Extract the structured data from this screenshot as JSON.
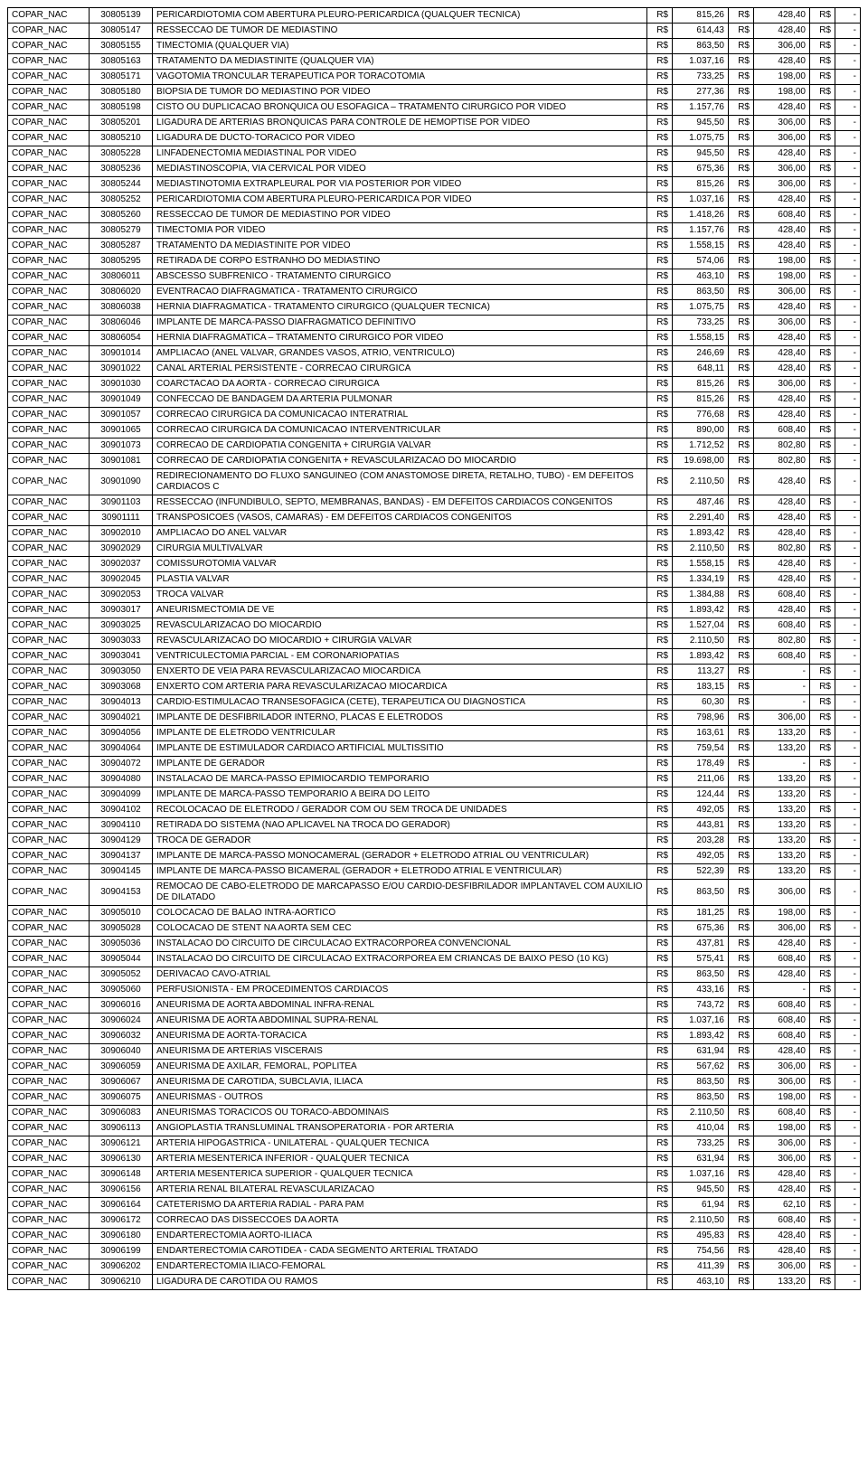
{
  "currency": "R$",
  "dash": "-",
  "rows": [
    {
      "cat": "COPAR_NAC",
      "code": "30805139",
      "desc": "PERICARDIOTOMIA COM ABERTURA PLEURO-PERICARDICA (QUALQUER TECNICA)",
      "v1": "815,26",
      "v2": "428,40",
      "v3": "-"
    },
    {
      "cat": "COPAR_NAC",
      "code": "30805147",
      "desc": "RESSECCAO DE TUMOR DE MEDIASTINO",
      "v1": "614,43",
      "v2": "428,40",
      "v3": "-"
    },
    {
      "cat": "COPAR_NAC",
      "code": "30805155",
      "desc": "TIMECTOMIA (QUALQUER VIA)",
      "v1": "863,50",
      "v2": "306,00",
      "v3": "-"
    },
    {
      "cat": "COPAR_NAC",
      "code": "30805163",
      "desc": "TRATAMENTO DA MEDIASTINITE (QUALQUER VIA)",
      "v1": "1.037,16",
      "v2": "428,40",
      "v3": "-"
    },
    {
      "cat": "COPAR_NAC",
      "code": "30805171",
      "desc": "VAGOTOMIA TRONCULAR TERAPEUTICA POR TORACOTOMIA",
      "v1": "733,25",
      "v2": "198,00",
      "v3": "-"
    },
    {
      "cat": "COPAR_NAC",
      "code": "30805180",
      "desc": "BIOPSIA DE TUMOR DO MEDIASTINO POR VIDEO",
      "v1": "277,36",
      "v2": "198,00",
      "v3": "-"
    },
    {
      "cat": "COPAR_NAC",
      "code": "30805198",
      "desc": "CISTO OU DUPLICACAO BRONQUICA OU ESOFAGICA – TRATAMENTO CIRURGICO POR VIDEO",
      "v1": "1.157,76",
      "v2": "428,40",
      "v3": "-"
    },
    {
      "cat": "COPAR_NAC",
      "code": "30805201",
      "desc": "LIGADURA DE ARTERIAS BRONQUICAS PARA CONTROLE DE HEMOPTISE POR VIDEO",
      "v1": "945,50",
      "v2": "306,00",
      "v3": "-"
    },
    {
      "cat": "COPAR_NAC",
      "code": "30805210",
      "desc": "LIGADURA DE DUCTO-TORACICO POR VIDEO",
      "v1": "1.075,75",
      "v2": "306,00",
      "v3": "-"
    },
    {
      "cat": "COPAR_NAC",
      "code": "30805228",
      "desc": "LINFADENECTOMIA MEDIASTINAL POR VIDEO",
      "v1": "945,50",
      "v2": "428,40",
      "v3": "-"
    },
    {
      "cat": "COPAR_NAC",
      "code": "30805236",
      "desc": "MEDIASTINOSCOPIA, VIA CERVICAL POR VIDEO",
      "v1": "675,36",
      "v2": "306,00",
      "v3": "-"
    },
    {
      "cat": "COPAR_NAC",
      "code": "30805244",
      "desc": "MEDIASTINOTOMIA EXTRAPLEURAL POR VIA POSTERIOR POR VIDEO",
      "v1": "815,26",
      "v2": "306,00",
      "v3": "-"
    },
    {
      "cat": "COPAR_NAC",
      "code": "30805252",
      "desc": "PERICARDIOTOMIA COM ABERTURA PLEURO-PERICARDICA POR VIDEO",
      "v1": "1.037,16",
      "v2": "428,40",
      "v3": "-"
    },
    {
      "cat": "COPAR_NAC",
      "code": "30805260",
      "desc": "RESSECCAO DE TUMOR DE MEDIASTINO POR VIDEO",
      "v1": "1.418,26",
      "v2": "608,40",
      "v3": "-"
    },
    {
      "cat": "COPAR_NAC",
      "code": "30805279",
      "desc": "TIMECTOMIA POR VIDEO",
      "v1": "1.157,76",
      "v2": "428,40",
      "v3": "-"
    },
    {
      "cat": "COPAR_NAC",
      "code": "30805287",
      "desc": "TRATAMENTO DA MEDIASTINITE POR VIDEO",
      "v1": "1.558,15",
      "v2": "428,40",
      "v3": "-"
    },
    {
      "cat": "COPAR_NAC",
      "code": "30805295",
      "desc": "RETIRADA DE CORPO ESTRANHO DO MEDIASTINO",
      "v1": "574,06",
      "v2": "198,00",
      "v3": "-"
    },
    {
      "cat": "COPAR_NAC",
      "code": "30806011",
      "desc": "ABSCESSO SUBFRENICO - TRATAMENTO CIRURGICO",
      "v1": "463,10",
      "v2": "198,00",
      "v3": "-"
    },
    {
      "cat": "COPAR_NAC",
      "code": "30806020",
      "desc": "EVENTRACAO DIAFRAGMATICA - TRATAMENTO CIRURGICO",
      "v1": "863,50",
      "v2": "306,00",
      "v3": "-"
    },
    {
      "cat": "COPAR_NAC",
      "code": "30806038",
      "desc": "HERNIA DIAFRAGMATICA - TRATAMENTO CIRURGICO (QUALQUER TECNICA)",
      "v1": "1.075,75",
      "v2": "428,40",
      "v3": "-"
    },
    {
      "cat": "COPAR_NAC",
      "code": "30806046",
      "desc": "IMPLANTE DE MARCA-PASSO DIAFRAGMATICO DEFINITIVO",
      "v1": "733,25",
      "v2": "306,00",
      "v3": "-"
    },
    {
      "cat": "COPAR_NAC",
      "code": "30806054",
      "desc": "HERNIA DIAFRAGMATICA – TRATAMENTO CIRURGICO POR VIDEO",
      "v1": "1.558,15",
      "v2": "428,40",
      "v3": "-"
    },
    {
      "cat": "COPAR_NAC",
      "code": "30901014",
      "desc": "AMPLIACAO (ANEL VALVAR, GRANDES VASOS, ATRIO, VENTRICULO)",
      "v1": "246,69",
      "v2": "428,40",
      "v3": "-"
    },
    {
      "cat": "COPAR_NAC",
      "code": "30901022",
      "desc": "CANAL ARTERIAL PERSISTENTE - CORRECAO CIRURGICA",
      "v1": "648,11",
      "v2": "428,40",
      "v3": "-"
    },
    {
      "cat": "COPAR_NAC",
      "code": "30901030",
      "desc": "COARCTACAO DA AORTA - CORRECAO CIRURGICA",
      "v1": "815,26",
      "v2": "306,00",
      "v3": "-"
    },
    {
      "cat": "COPAR_NAC",
      "code": "30901049",
      "desc": "CONFECCAO DE BANDAGEM DA ARTERIA PULMONAR",
      "v1": "815,26",
      "v2": "428,40",
      "v3": "-"
    },
    {
      "cat": "COPAR_NAC",
      "code": "30901057",
      "desc": "CORRECAO CIRURGICA DA COMUNICACAO INTERATRIAL",
      "v1": "776,68",
      "v2": "428,40",
      "v3": "-"
    },
    {
      "cat": "COPAR_NAC",
      "code": "30901065",
      "desc": "CORRECAO CIRURGICA DA COMUNICACAO INTERVENTRICULAR",
      "v1": "890,00",
      "v2": "608,40",
      "v3": "-"
    },
    {
      "cat": "COPAR_NAC",
      "code": "30901073",
      "desc": "CORRECAO DE CARDIOPATIA CONGENITA + CIRURGIA VALVAR",
      "v1": "1.712,52",
      "v2": "802,80",
      "v3": "-"
    },
    {
      "cat": "COPAR_NAC",
      "code": "30901081",
      "desc": "CORRECAO DE CARDIOPATIA CONGENITA + REVASCULARIZACAO DO MIOCARDIO",
      "v1": "19.698,00",
      "v2": "802,80",
      "v3": "-"
    },
    {
      "cat": "COPAR_NAC",
      "code": "30901090",
      "desc": "REDIRECIONAMENTO DO FLUXO SANGUINEO (COM ANASTOMOSE DIRETA, RETALHO, TUBO) - EM DEFEITOS CARDIACOS C",
      "v1": "2.110,50",
      "v2": "428,40",
      "v3": "-"
    },
    {
      "cat": "COPAR_NAC",
      "code": "30901103",
      "desc": "RESSECCAO (INFUNDIBULO, SEPTO, MEMBRANAS, BANDAS) - EM DEFEITOS CARDIACOS CONGENITOS",
      "v1": "487,46",
      "v2": "428,40",
      "v3": "-"
    },
    {
      "cat": "COPAR_NAC",
      "code": "30901111",
      "desc": "TRANSPOSICOES (VASOS, CAMARAS) - EM DEFEITOS CARDIACOS CONGENITOS",
      "v1": "2.291,40",
      "v2": "428,40",
      "v3": "-"
    },
    {
      "cat": "COPAR_NAC",
      "code": "30902010",
      "desc": "AMPLIACAO DO ANEL VALVAR",
      "v1": "1.893,42",
      "v2": "428,40",
      "v3": "-"
    },
    {
      "cat": "COPAR_NAC",
      "code": "30902029",
      "desc": "CIRURGIA MULTIVALVAR",
      "v1": "2.110,50",
      "v2": "802,80",
      "v3": "-"
    },
    {
      "cat": "COPAR_NAC",
      "code": "30902037",
      "desc": "COMISSUROTOMIA VALVAR",
      "v1": "1.558,15",
      "v2": "428,40",
      "v3": "-"
    },
    {
      "cat": "COPAR_NAC",
      "code": "30902045",
      "desc": "PLASTIA VALVAR",
      "v1": "1.334,19",
      "v2": "428,40",
      "v3": "-"
    },
    {
      "cat": "COPAR_NAC",
      "code": "30902053",
      "desc": "TROCA VALVAR",
      "v1": "1.384,88",
      "v2": "608,40",
      "v3": "-"
    },
    {
      "cat": "COPAR_NAC",
      "code": "30903017",
      "desc": "ANEURISMECTOMIA DE VE",
      "v1": "1.893,42",
      "v2": "428,40",
      "v3": "-"
    },
    {
      "cat": "COPAR_NAC",
      "code": "30903025",
      "desc": "REVASCULARIZACAO DO MIOCARDIO",
      "v1": "1.527,04",
      "v2": "608,40",
      "v3": "-"
    },
    {
      "cat": "COPAR_NAC",
      "code": "30903033",
      "desc": "REVASCULARIZACAO DO MIOCARDIO + CIRURGIA VALVAR",
      "v1": "2.110,50",
      "v2": "802,80",
      "v3": "-"
    },
    {
      "cat": "COPAR_NAC",
      "code": "30903041",
      "desc": "VENTRICULECTOMIA PARCIAL - EM CORONARIOPATIAS",
      "v1": "1.893,42",
      "v2": "608,40",
      "v3": "-"
    },
    {
      "cat": "COPAR_NAC",
      "code": "30903050",
      "desc": "ENXERTO DE VEIA PARA REVASCULARIZACAO MIOCARDICA",
      "v1": "113,27",
      "v2": "-",
      "v3": "-"
    },
    {
      "cat": "COPAR_NAC",
      "code": "30903068",
      "desc": "ENXERTO COM ARTERIA PARA REVASCULARIZACAO MIOCARDICA",
      "v1": "183,15",
      "v2": "-",
      "v3": "-"
    },
    {
      "cat": "COPAR_NAC",
      "code": "30904013",
      "desc": "CARDIO-ESTIMULACAO TRANSESOFAGICA (CETE), TERAPEUTICA OU DIAGNOSTICA",
      "v1": "60,30",
      "v2": "-",
      "v3": "-"
    },
    {
      "cat": "COPAR_NAC",
      "code": "30904021",
      "desc": "IMPLANTE DE DESFIBRILADOR INTERNO, PLACAS E ELETRODOS",
      "v1": "798,96",
      "v2": "306,00",
      "v3": "-"
    },
    {
      "cat": "COPAR_NAC",
      "code": "30904056",
      "desc": "IMPLANTE DE ELETRODO VENTRICULAR",
      "v1": "163,61",
      "v2": "133,20",
      "v3": "-"
    },
    {
      "cat": "COPAR_NAC",
      "code": "30904064",
      "desc": "IMPLANTE DE ESTIMULADOR CARDIACO ARTIFICIAL MULTISSITIO",
      "v1": "759,54",
      "v2": "133,20",
      "v3": "-"
    },
    {
      "cat": "COPAR_NAC",
      "code": "30904072",
      "desc": "IMPLANTE DE GERADOR",
      "v1": "178,49",
      "v2": "-",
      "v3": "-"
    },
    {
      "cat": "COPAR_NAC",
      "code": "30904080",
      "desc": "INSTALACAO DE MARCA-PASSO EPIMIOCARDIO TEMPORARIO",
      "v1": "211,06",
      "v2": "133,20",
      "v3": "-"
    },
    {
      "cat": "COPAR_NAC",
      "code": "30904099",
      "desc": "IMPLANTE DE MARCA-PASSO TEMPORARIO A BEIRA DO LEITO",
      "v1": "124,44",
      "v2": "133,20",
      "v3": "-"
    },
    {
      "cat": "COPAR_NAC",
      "code": "30904102",
      "desc": "RECOLOCACAO DE ELETRODO / GERADOR COM OU SEM TROCA DE UNIDADES",
      "v1": "492,05",
      "v2": "133,20",
      "v3": "-"
    },
    {
      "cat": "COPAR_NAC",
      "code": "30904110",
      "desc": "RETIRADA DO SISTEMA (NAO APLICAVEL NA TROCA DO GERADOR)",
      "v1": "443,81",
      "v2": "133,20",
      "v3": "-"
    },
    {
      "cat": "COPAR_NAC",
      "code": "30904129",
      "desc": "TROCA DE GERADOR",
      "v1": "203,28",
      "v2": "133,20",
      "v3": "-"
    },
    {
      "cat": "COPAR_NAC",
      "code": "30904137",
      "desc": "IMPLANTE DE MARCA-PASSO MONOCAMERAL (GERADOR + ELETRODO ATRIAL OU VENTRICULAR)",
      "v1": "492,05",
      "v2": "133,20",
      "v3": "-"
    },
    {
      "cat": "COPAR_NAC",
      "code": "30904145",
      "desc": "IMPLANTE DE MARCA-PASSO BICAMERAL (GERADOR + ELETRODO ATRIAL E VENTRICULAR)",
      "v1": "522,39",
      "v2": "133,20",
      "v3": "-"
    },
    {
      "cat": "COPAR_NAC",
      "code": "30904153",
      "desc": "REMOCAO DE CABO-ELETRODO DE MARCAPASSO E/OU CARDIO-DESFIBRILADOR IMPLANTAVEL COM AUXILIO DE DILATADO",
      "v1": "863,50",
      "v2": "306,00",
      "v3": "-"
    },
    {
      "cat": "COPAR_NAC",
      "code": "30905010",
      "desc": "COLOCACAO DE BALAO INTRA-AORTICO",
      "v1": "181,25",
      "v2": "198,00",
      "v3": "-"
    },
    {
      "cat": "COPAR_NAC",
      "code": "30905028",
      "desc": "COLOCACAO DE STENT NA AORTA SEM CEC",
      "v1": "675,36",
      "v2": "306,00",
      "v3": "-"
    },
    {
      "cat": "COPAR_NAC",
      "code": "30905036",
      "desc": "INSTALACAO DO CIRCUITO DE CIRCULACAO EXTRACORPOREA CONVENCIONAL",
      "v1": "437,81",
      "v2": "428,40",
      "v3": "-"
    },
    {
      "cat": "COPAR_NAC",
      "code": "30905044",
      "desc": "INSTALACAO DO CIRCUITO DE CIRCULACAO EXTRACORPOREA EM CRIANCAS DE BAIXO PESO (10 KG)",
      "v1": "575,41",
      "v2": "608,40",
      "v3": "-"
    },
    {
      "cat": "COPAR_NAC",
      "code": "30905052",
      "desc": "DERIVACAO CAVO-ATRIAL",
      "v1": "863,50",
      "v2": "428,40",
      "v3": "-"
    },
    {
      "cat": "COPAR_NAC",
      "code": "30905060",
      "desc": "PERFUSIONISTA - EM PROCEDIMENTOS CARDIACOS",
      "v1": "433,16",
      "v2": "-",
      "v3": "-"
    },
    {
      "cat": "COPAR_NAC",
      "code": "30906016",
      "desc": "ANEURISMA DE AORTA ABDOMINAL INFRA-RENAL",
      "v1": "743,72",
      "v2": "608,40",
      "v3": "-"
    },
    {
      "cat": "COPAR_NAC",
      "code": "30906024",
      "desc": "ANEURISMA DE AORTA ABDOMINAL SUPRA-RENAL",
      "v1": "1.037,16",
      "v2": "608,40",
      "v3": "-"
    },
    {
      "cat": "COPAR_NAC",
      "code": "30906032",
      "desc": "ANEURISMA DE AORTA-TORACICA",
      "v1": "1.893,42",
      "v2": "608,40",
      "v3": "-"
    },
    {
      "cat": "COPAR_NAC",
      "code": "30906040",
      "desc": "ANEURISMA DE ARTERIAS VISCERAIS",
      "v1": "631,94",
      "v2": "428,40",
      "v3": "-"
    },
    {
      "cat": "COPAR_NAC",
      "code": "30906059",
      "desc": "ANEURISMA DE AXILAR, FEMORAL, POPLITEA",
      "v1": "567,62",
      "v2": "306,00",
      "v3": "-"
    },
    {
      "cat": "COPAR_NAC",
      "code": "30906067",
      "desc": "ANEURISMA DE CAROTIDA, SUBCLAVIA, ILIACA",
      "v1": "863,50",
      "v2": "306,00",
      "v3": "-"
    },
    {
      "cat": "COPAR_NAC",
      "code": "30906075",
      "desc": "ANEURISMAS - OUTROS",
      "v1": "863,50",
      "v2": "198,00",
      "v3": "-"
    },
    {
      "cat": "COPAR_NAC",
      "code": "30906083",
      "desc": "ANEURISMAS TORACICOS OU TORACO-ABDOMINAIS",
      "v1": "2.110,50",
      "v2": "608,40",
      "v3": "-"
    },
    {
      "cat": "COPAR_NAC",
      "code": "30906113",
      "desc": "ANGIOPLASTIA TRANSLUMINAL TRANSOPERATORIA - POR ARTERIA",
      "v1": "410,04",
      "v2": "198,00",
      "v3": "-"
    },
    {
      "cat": "COPAR_NAC",
      "code": "30906121",
      "desc": "ARTERIA HIPOGASTRICA - UNILATERAL - QUALQUER TECNICA",
      "v1": "733,25",
      "v2": "306,00",
      "v3": "-"
    },
    {
      "cat": "COPAR_NAC",
      "code": "30906130",
      "desc": "ARTERIA MESENTERICA INFERIOR - QUALQUER TECNICA",
      "v1": "631,94",
      "v2": "306,00",
      "v3": "-"
    },
    {
      "cat": "COPAR_NAC",
      "code": "30906148",
      "desc": "ARTERIA MESENTERICA SUPERIOR - QUALQUER TECNICA",
      "v1": "1.037,16",
      "v2": "428,40",
      "v3": "-"
    },
    {
      "cat": "COPAR_NAC",
      "code": "30906156",
      "desc": "ARTERIA RENAL BILATERAL REVASCULARIZACAO",
      "v1": "945,50",
      "v2": "428,40",
      "v3": "-"
    },
    {
      "cat": "COPAR_NAC",
      "code": "30906164",
      "desc": "CATETERISMO DA ARTERIA RADIAL - PARA PAM",
      "v1": "61,94",
      "v2": "62,10",
      "v3": "-"
    },
    {
      "cat": "COPAR_NAC",
      "code": "30906172",
      "desc": "CORRECAO DAS DISSECCOES DA AORTA",
      "v1": "2.110,50",
      "v2": "608,40",
      "v3": "-"
    },
    {
      "cat": "COPAR_NAC",
      "code": "30906180",
      "desc": "ENDARTERECTOMIA AORTO-ILIACA",
      "v1": "495,83",
      "v2": "428,40",
      "v3": "-"
    },
    {
      "cat": "COPAR_NAC",
      "code": "30906199",
      "desc": "ENDARTERECTOMIA CAROTIDEA - CADA SEGMENTO ARTERIAL TRATADO",
      "v1": "754,56",
      "v2": "428,40",
      "v3": "-"
    },
    {
      "cat": "COPAR_NAC",
      "code": "30906202",
      "desc": "ENDARTERECTOMIA ILIACO-FEMORAL",
      "v1": "411,39",
      "v2": "306,00",
      "v3": "-"
    },
    {
      "cat": "COPAR_NAC",
      "code": "30906210",
      "desc": "LIGADURA DE CAROTIDA OU RAMOS",
      "v1": "463,10",
      "v2": "133,20",
      "v3": "-"
    }
  ]
}
